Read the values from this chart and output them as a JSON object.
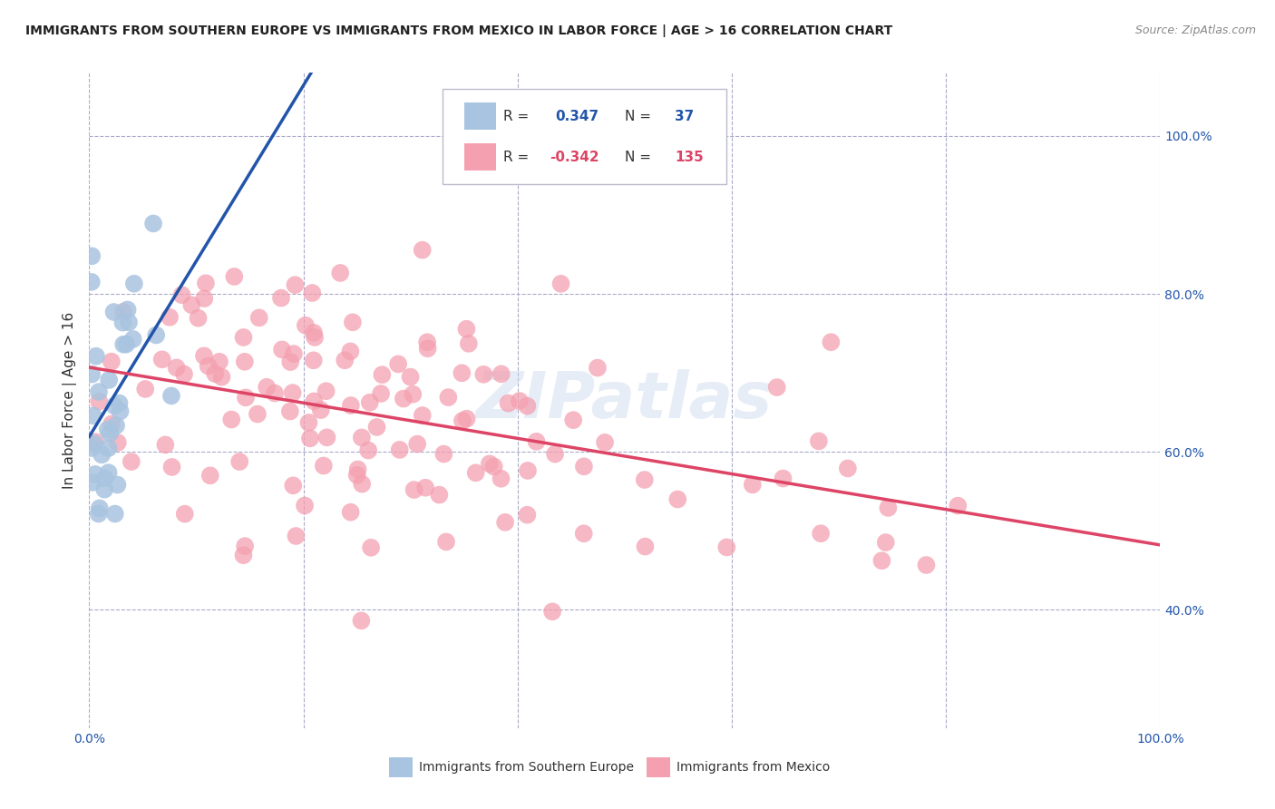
{
  "title": "IMMIGRANTS FROM SOUTHERN EUROPE VS IMMIGRANTS FROM MEXICO IN LABOR FORCE | AGE > 16 CORRELATION CHART",
  "source": "Source: ZipAtlas.com",
  "ylabel": "In Labor Force | Age > 16",
  "blue_R": 0.347,
  "blue_N": 37,
  "pink_R": -0.342,
  "pink_N": 135,
  "blue_color": "#a8c4e0",
  "pink_color": "#f4a0b0",
  "blue_line_color": "#2255aa",
  "pink_line_color": "#dd4466",
  "legend_label_blue": "Immigrants from Southern Europe",
  "legend_label_pink": "Immigrants from Mexico",
  "watermark": "ZIPatlas",
  "background_color": "#ffffff",
  "grid_color": "#aaaacc",
  "title_color": "#222222",
  "source_color": "#888888",
  "tick_label_color": "#2255aa",
  "axis_label_color": "#333333"
}
